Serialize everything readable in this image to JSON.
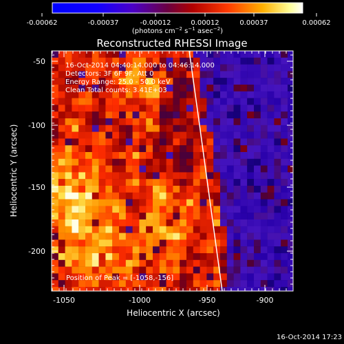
{
  "colorbar": {
    "ticks": [
      "-0.00062",
      "-0.00037",
      "-0.00012",
      "0.00012",
      "0.00037",
      "0.00062"
    ],
    "units_text": "(photons cm",
    "units_sup1": "−2",
    "units_mid": " s",
    "units_sup2": "−1",
    "units_end": " asec",
    "units_sup3": "−2",
    "units_close": ")"
  },
  "title": "Reconstructed RHESSI Image",
  "info": {
    "line1": "16-Oct-2014 04:40:14.000 to 04:46:14.000",
    "line2": "Detectors: 3F 6F 9F, Att 0",
    "line3": "Energy Range: 25.0 - 50.0 keV",
    "line4": "Clean    Total counts: 3.41E+03"
  },
  "peak": "Position of Peak = [-1058,-156]",
  "axes": {
    "x_label": "Heliocentric X (arcsec)",
    "y_label": "Heliocentric Y (arcsec)",
    "x_ticks": [
      "-1050",
      "-1000",
      "-950",
      "-900"
    ],
    "y_ticks": [
      "-50",
      "-100",
      "-150",
      "-200"
    ]
  },
  "timestamp": "16-Oct-2014 17:23"
}
